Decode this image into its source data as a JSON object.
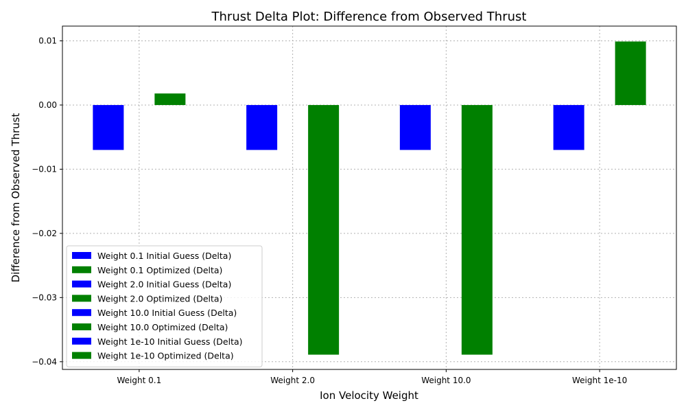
{
  "chart_data": {
    "type": "bar",
    "title": "Thrust Delta Plot: Difference from Observed Thrust",
    "xlabel": "Ion Velocity Weight",
    "ylabel": "Difference from Observed Thrust",
    "categories": [
      "Weight 0.1",
      "Weight 2.0",
      "Weight 10.0",
      "Weight 1e-10"
    ],
    "ylim": [
      -0.0412,
      0.0123
    ],
    "yticks": [
      -0.04,
      -0.03,
      -0.02,
      -0.01,
      0.0,
      0.01
    ],
    "ytick_labels": [
      "−0.04",
      "−0.03",
      "−0.02",
      "−0.01",
      "0.00",
      "0.01"
    ],
    "grid": true,
    "legend_position": "lower-left",
    "colors": {
      "initial": "#0000ff",
      "optimized": "#008000"
    },
    "series": [
      {
        "name": "Weight 0.1 Initial Guess (Delta)",
        "kind": "initial",
        "category_index": 0,
        "value": -0.007
      },
      {
        "name": "Weight 0.1 Optimized (Delta)",
        "kind": "optimized",
        "category_index": 0,
        "value": 0.0018
      },
      {
        "name": "Weight 2.0 Initial Guess (Delta)",
        "kind": "initial",
        "category_index": 1,
        "value": -0.007
      },
      {
        "name": "Weight 2.0 Optimized (Delta)",
        "kind": "optimized",
        "category_index": 1,
        "value": -0.0389
      },
      {
        "name": "Weight 10.0 Initial Guess (Delta)",
        "kind": "initial",
        "category_index": 2,
        "value": -0.007
      },
      {
        "name": "Weight 10.0 Optimized (Delta)",
        "kind": "optimized",
        "category_index": 2,
        "value": -0.0389
      },
      {
        "name": "Weight 1e-10 Initial Guess (Delta)",
        "kind": "initial",
        "category_index": 3,
        "value": -0.007
      },
      {
        "name": "Weight 1e-10 Optimized (Delta)",
        "kind": "optimized",
        "category_index": 3,
        "value": 0.0099
      }
    ]
  }
}
